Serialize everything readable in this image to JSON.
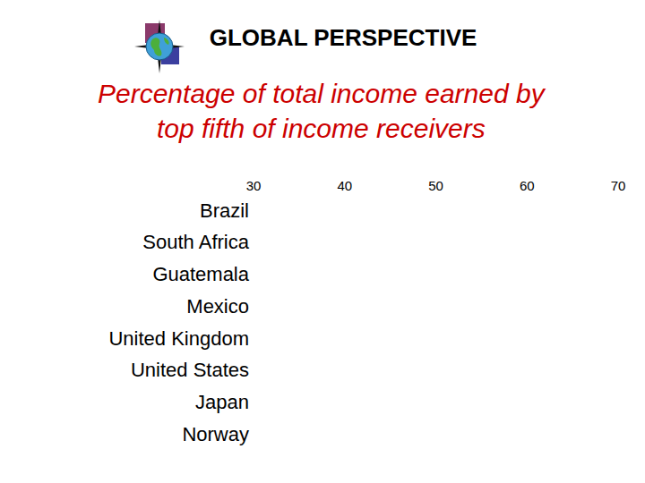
{
  "chart_data": {
    "type": "bar",
    "orientation": "horizontal",
    "title": "GLOBAL PERSPECTIVE",
    "subtitle": "Percentage of total income earned by top fifth of income receivers",
    "categories": [
      "Brazil",
      "South Africa",
      "Guatemala",
      "Mexico",
      "United Kingdom",
      "United States",
      "Japan",
      "Norway"
    ],
    "values": [
      null,
      null,
      null,
      null,
      null,
      null,
      null,
      null
    ],
    "xlim": [
      30,
      70
    ],
    "xticks": [
      30,
      40,
      50,
      60,
      70
    ],
    "grid": false
  }
}
